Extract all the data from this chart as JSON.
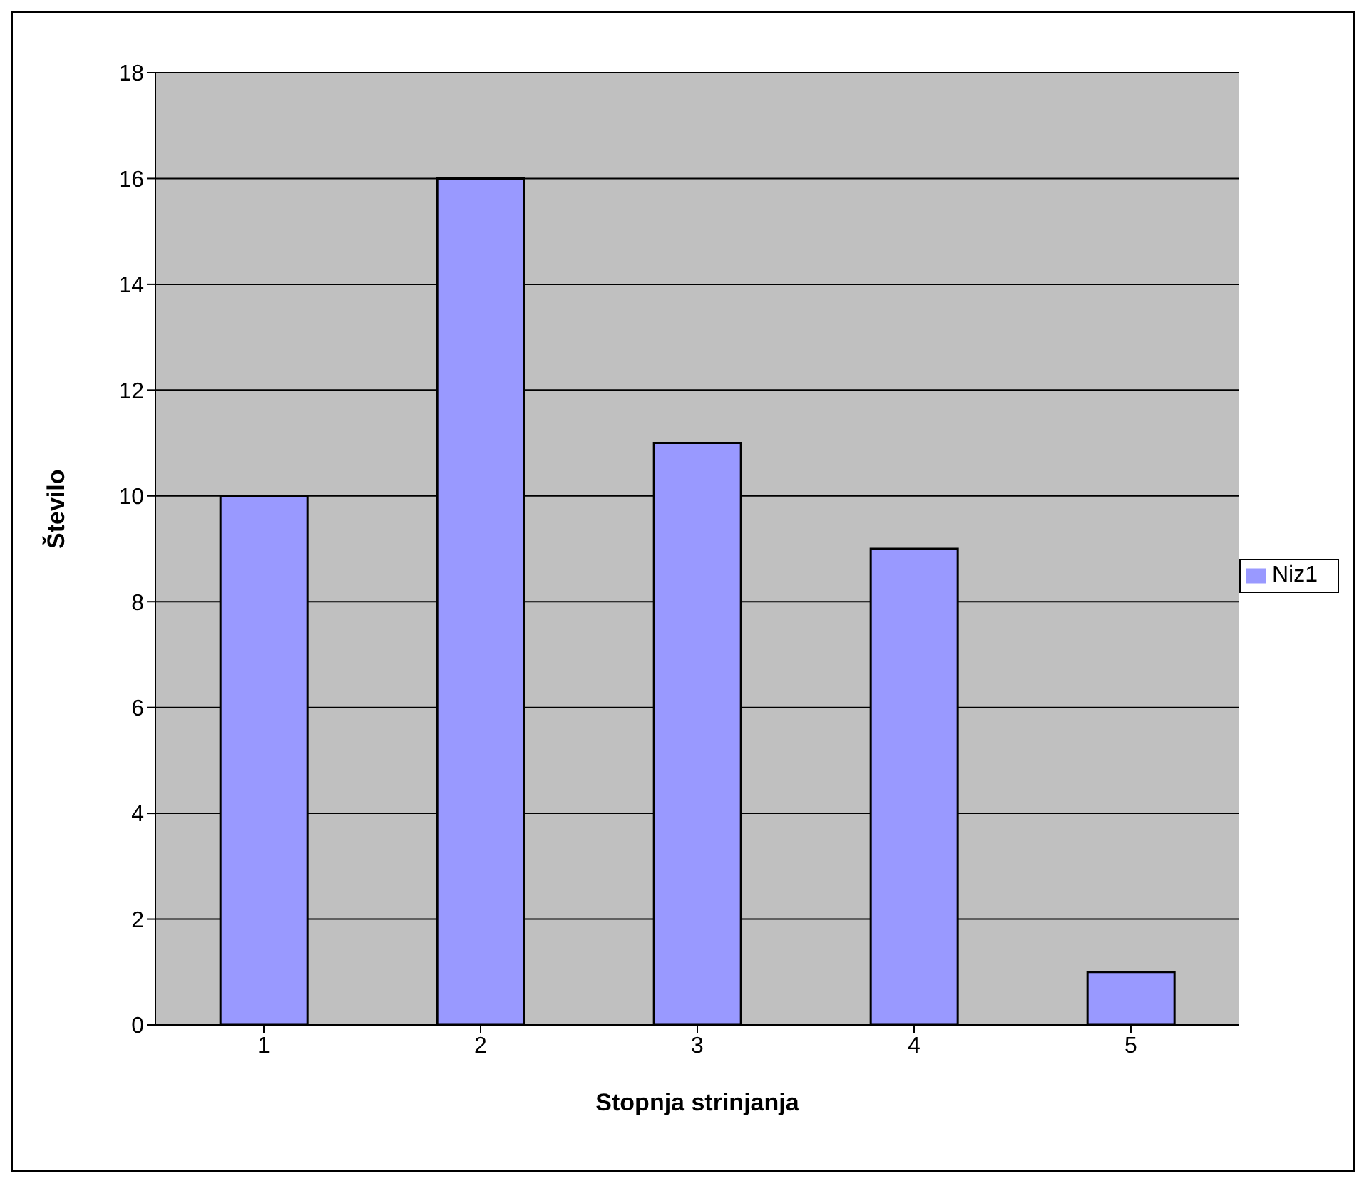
{
  "chart_data": {
    "type": "bar",
    "xlabel": "Stopnja strinjanja",
    "ylabel": "Število",
    "categories": [
      "1",
      "2",
      "3",
      "4",
      "5"
    ],
    "series": [
      {
        "name": "Niz1",
        "color": "#9999ff",
        "values": [
          10,
          16,
          11,
          9,
          1
        ]
      }
    ],
    "ylim": [
      0,
      18
    ],
    "yticks": [
      0,
      2,
      4,
      6,
      8,
      10,
      12,
      14,
      16,
      18
    ],
    "grid": "y",
    "legend": "right"
  }
}
